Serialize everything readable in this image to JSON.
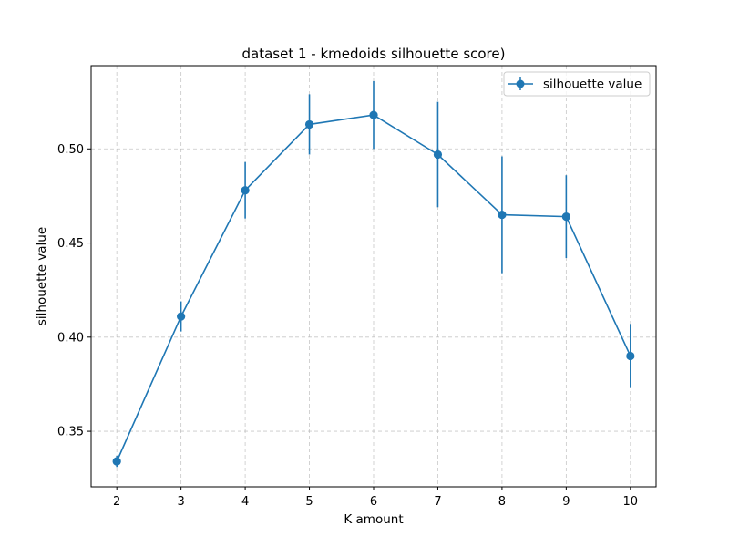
{
  "chart_data": {
    "type": "line",
    "title": "dataset 1 - kmedoids silhouette score)",
    "xlabel": "K amount",
    "ylabel": "silhouette value",
    "x": [
      2,
      3,
      4,
      5,
      6,
      7,
      8,
      9,
      10
    ],
    "x_tick_labels": [
      "2",
      "3",
      "4",
      "5",
      "6",
      "7",
      "8",
      "9",
      "10"
    ],
    "y_ticks": [
      0.35,
      0.4,
      0.45,
      0.5
    ],
    "y_tick_labels": [
      "0.35",
      "0.40",
      "0.45",
      "0.50"
    ],
    "xlim": [
      1.6,
      10.4
    ],
    "ylim": [
      0.3205,
      0.5442
    ],
    "grid": true,
    "legend_position": "top-right",
    "series": [
      {
        "name": "silhouette value",
        "color": "#1f77b4",
        "values": [
          0.334,
          0.411,
          0.478,
          0.513,
          0.518,
          0.497,
          0.465,
          0.464,
          0.39
        ],
        "error": [
          0.003,
          0.008,
          0.015,
          0.016,
          0.018,
          0.028,
          0.031,
          0.022,
          0.017
        ]
      }
    ]
  }
}
